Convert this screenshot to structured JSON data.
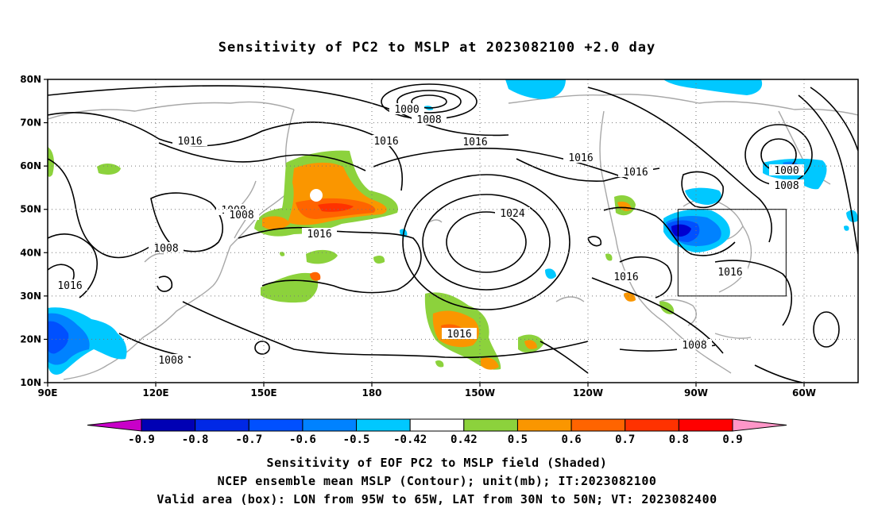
{
  "title": "Sensitivity of PC2 to MSLP at 2023082100 +2.0 day",
  "map": {
    "lat_labels": [
      "80N",
      "70N",
      "60N",
      "50N",
      "40N",
      "30N",
      "20N",
      "10N"
    ],
    "lon_labels": [
      "90E",
      "120E",
      "150E",
      "180",
      "150W",
      "120W",
      "90W",
      "60W"
    ],
    "contour_labels": [
      "1000",
      "1008",
      "1016",
      "1016",
      "1016",
      "1016",
      "1016",
      "1000",
      "1008",
      "1008",
      "1008",
      "1024",
      "1016",
      "1016",
      "1016",
      "1016",
      "1008",
      "1008",
      "1016",
      "1008"
    ],
    "valid_box": {
      "lon_min": -95,
      "lon_max": -65,
      "lat_min": 30,
      "lat_max": 50
    },
    "colors": {
      "coast": "#a8a8a8",
      "contour": "#000000",
      "pos_050": "#8cd23c",
      "pos_060": "#fa9600",
      "pos_070": "#ff6400",
      "pos_080": "#ff3200",
      "neg_050": "#00c8ff",
      "neg_060": "#0078ff",
      "neg_070": "#0040ff",
      "neg_080": "#0000d0"
    }
  },
  "colorbar": {
    "labels": [
      "-0.9",
      "-0.8",
      "-0.7",
      "-0.6",
      "-0.5",
      "-0.42",
      "0.42",
      "0.5",
      "0.6",
      "0.7",
      "0.8",
      "0.9"
    ],
    "colors": [
      "#c800c8",
      "#0000b4",
      "#0028e6",
      "#0050ff",
      "#0082ff",
      "#00c8ff",
      "#ffffff",
      "#8cd23c",
      "#fa9600",
      "#ff6400",
      "#ff3200",
      "#ff0000",
      "#ff96c8"
    ]
  },
  "captions": {
    "line1": "Sensitivity of EOF PC2 to MSLP field (Shaded)",
    "line2": "NCEP ensemble mean MSLP (Contour); unit(mb); IT:2023082100",
    "line3": "Valid area (box): LON from 95W to 65W, LAT from 30N to 50N; VT: 2023082400"
  }
}
